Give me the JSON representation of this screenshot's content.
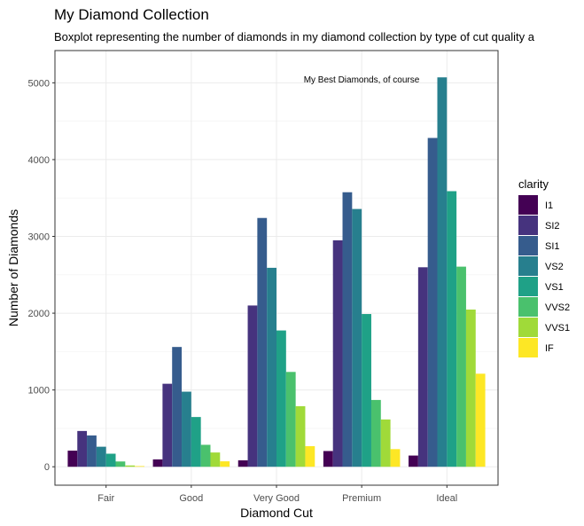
{
  "chart_data": {
    "type": "bar",
    "title": "My Diamond Collection",
    "subtitle": "Boxplot representing the number of diamonds in my diamond collection by type of cut quality a",
    "xlabel": "Diamond Cut",
    "ylabel": "Number of Diamonds",
    "annotation": "My Best Diamonds, of course",
    "categories": [
      "Fair",
      "Good",
      "Very Good",
      "Premium",
      "Ideal"
    ],
    "ylim": [
      -240,
      5420
    ],
    "yticks": [
      0,
      1000,
      2000,
      3000,
      4000,
      5000
    ],
    "grid": true,
    "legend": {
      "title": "clarity",
      "position": "right"
    },
    "series": [
      {
        "name": "I1",
        "color": "#440154",
        "values": [
          210,
          96,
          84,
          205,
          146
        ]
      },
      {
        "name": "SI2",
        "color": "#46337E",
        "values": [
          466,
          1081,
          2100,
          2949,
          2598
        ]
      },
      {
        "name": "SI1",
        "color": "#365C8D",
        "values": [
          408,
          1560,
          3240,
          3575,
          4282
        ]
      },
      {
        "name": "VS2",
        "color": "#277F8E",
        "values": [
          261,
          978,
          2591,
          3357,
          5071
        ]
      },
      {
        "name": "VS1",
        "color": "#1FA187",
        "values": [
          170,
          648,
          1775,
          1989,
          3589
        ]
      },
      {
        "name": "VVS2",
        "color": "#4AC16D",
        "values": [
          69,
          286,
          1235,
          870,
          2606
        ]
      },
      {
        "name": "VVS1",
        "color": "#A0DA39",
        "values": [
          17,
          186,
          789,
          616,
          2047
        ]
      },
      {
        "name": "IF",
        "color": "#FDE725",
        "values": [
          9,
          71,
          268,
          230,
          1212
        ]
      }
    ]
  }
}
